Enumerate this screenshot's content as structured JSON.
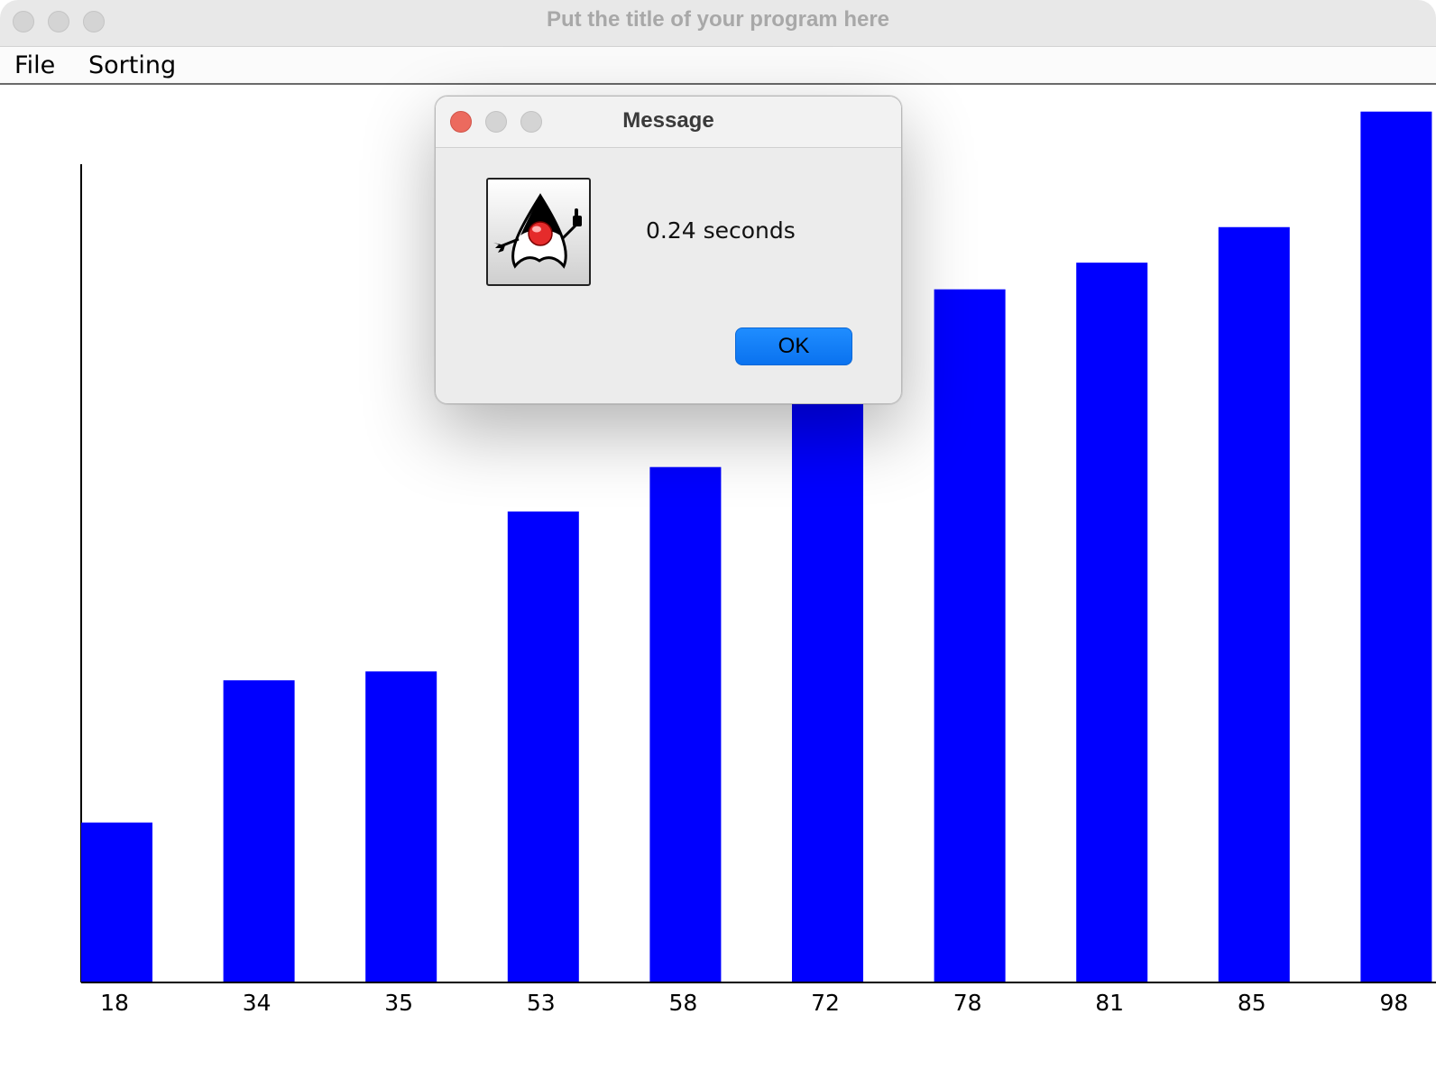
{
  "window": {
    "title": "Put the title of your program here"
  },
  "menubar": {
    "items": [
      {
        "label": "File"
      },
      {
        "label": "Sorting"
      }
    ]
  },
  "chart_data": {
    "type": "bar",
    "categories": [
      "18",
      "34",
      "35",
      "53",
      "58",
      "72",
      "78",
      "81",
      "85",
      "98"
    ],
    "values": [
      18,
      34,
      35,
      53,
      58,
      72,
      78,
      81,
      85,
      98
    ],
    "title": "",
    "xlabel": "",
    "ylabel": "",
    "ylim": [
      0,
      100
    ],
    "bar_color": "#0000ff",
    "grid": false
  },
  "dialog": {
    "title": "Message",
    "icon": "java-duke-icon",
    "message": "0.24 seconds",
    "ok_label": "OK"
  },
  "colors": {
    "accent": "#0a72ef",
    "close_red": "#ec6a5e"
  }
}
